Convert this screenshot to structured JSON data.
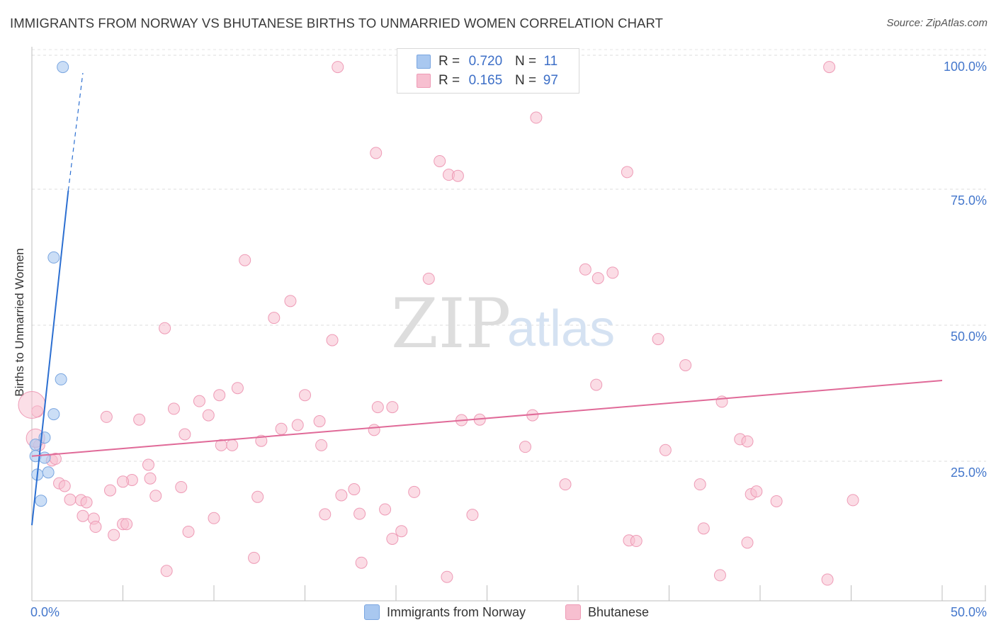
{
  "title": "IMMIGRANTS FROM NORWAY VS BHUTANESE BIRTHS TO UNMARRIED WOMEN CORRELATION CHART",
  "source": "Source: ZipAtlas.com",
  "watermark": {
    "zip": "ZIP",
    "atlas": "atlas"
  },
  "legend": {
    "series1": {
      "r_label": "R =",
      "r_value": "0.720",
      "n_label": "N =",
      "n_value": "11"
    },
    "series2": {
      "r_label": "R =",
      "r_value": "0.165",
      "n_label": "N =",
      "n_value": "97"
    }
  },
  "colors": {
    "norway_fill": "#a9c8f0",
    "norway_stroke": "#7aa6e0",
    "norway_line": "#2c6fd1",
    "bhutan_fill": "#f7bfd0",
    "bhutan_stroke": "#ee9bb6",
    "bhutan_line": "#e06a98"
  },
  "chart_data": {
    "type": "scatter",
    "title": "IMMIGRANTS FROM NORWAY VS BHUTANESE BIRTHS TO UNMARRIED WOMEN CORRELATION CHART",
    "xlabel": "",
    "ylabel": "Births to Unmarried Women",
    "xlim": [
      0,
      50
    ],
    "ylim": [
      0,
      100
    ],
    "x_tick_labels": [
      "0.0%",
      "50.0%"
    ],
    "y_tick_labels": [
      "25.0%",
      "50.0%",
      "75.0%",
      "100.0%"
    ],
    "y_tick_values": [
      25,
      50,
      75,
      100
    ],
    "grid": true,
    "legend_position": "bottom-center",
    "series": [
      {
        "name": "Immigrants from Norway",
        "r": 0.72,
        "n": 11,
        "points": [
          {
            "x": 1.7,
            "y": 98.1
          },
          {
            "x": 1.2,
            "y": 63.1
          },
          {
            "x": 1.6,
            "y": 40.7
          },
          {
            "x": 1.2,
            "y": 34.3
          },
          {
            "x": 0.7,
            "y": 30.0
          },
          {
            "x": 0.2,
            "y": 28.7
          },
          {
            "x": 0.2,
            "y": 26.6
          },
          {
            "x": 0.7,
            "y": 26.3
          },
          {
            "x": 0.9,
            "y": 23.6
          },
          {
            "x": 0.3,
            "y": 23.2
          },
          {
            "x": 0.5,
            "y": 18.4
          }
        ],
        "trend": {
          "x1": 0.0,
          "y1": 13.9,
          "x2": 2.0,
          "y2": 75.4,
          "dash_to": {
            "x": 2.8,
            "y": 97.0
          }
        }
      },
      {
        "name": "Bhutanese",
        "r": 0.165,
        "n": 97,
        "points": [
          {
            "x": 16.8,
            "y": 98.1
          },
          {
            "x": 43.8,
            "y": 98.1
          },
          {
            "x": 27.7,
            "y": 88.8
          },
          {
            "x": 18.9,
            "y": 82.3
          },
          {
            "x": 22.4,
            "y": 80.8
          },
          {
            "x": 22.9,
            "y": 78.3
          },
          {
            "x": 23.4,
            "y": 78.1
          },
          {
            "x": 32.7,
            "y": 78.8
          },
          {
            "x": 11.7,
            "y": 62.6
          },
          {
            "x": 30.4,
            "y": 60.9
          },
          {
            "x": 31.1,
            "y": 59.3
          },
          {
            "x": 31.9,
            "y": 60.3
          },
          {
            "x": 21.8,
            "y": 59.2
          },
          {
            "x": 14.2,
            "y": 55.1
          },
          {
            "x": 13.3,
            "y": 52.0
          },
          {
            "x": 7.3,
            "y": 50.1
          },
          {
            "x": 16.5,
            "y": 47.9
          },
          {
            "x": 34.4,
            "y": 48.1
          },
          {
            "x": 35.9,
            "y": 43.3
          },
          {
            "x": 31.0,
            "y": 39.7
          },
          {
            "x": 11.3,
            "y": 39.1
          },
          {
            "x": 10.3,
            "y": 37.8
          },
          {
            "x": 15.0,
            "y": 37.8
          },
          {
            "x": 9.2,
            "y": 36.7
          },
          {
            "x": 7.8,
            "y": 35.3
          },
          {
            "x": 19.0,
            "y": 35.6
          },
          {
            "x": 19.8,
            "y": 35.6
          },
          {
            "x": 9.7,
            "y": 34.1
          },
          {
            "x": 4.1,
            "y": 33.8
          },
          {
            "x": 5.9,
            "y": 33.3
          },
          {
            "x": 37.9,
            "y": 36.6
          },
          {
            "x": 27.5,
            "y": 34.1
          },
          {
            "x": 23.6,
            "y": 33.2
          },
          {
            "x": 24.6,
            "y": 33.3
          },
          {
            "x": 15.8,
            "y": 33.0
          },
          {
            "x": 14.6,
            "y": 32.3
          },
          {
            "x": 13.7,
            "y": 31.6
          },
          {
            "x": 18.8,
            "y": 31.4
          },
          {
            "x": 8.4,
            "y": 30.6
          },
          {
            "x": 12.6,
            "y": 29.4
          },
          {
            "x": 10.4,
            "y": 28.6
          },
          {
            "x": 11.0,
            "y": 28.6
          },
          {
            "x": 15.9,
            "y": 28.6
          },
          {
            "x": 27.1,
            "y": 28.3
          },
          {
            "x": 34.8,
            "y": 27.7
          },
          {
            "x": 38.9,
            "y": 29.7
          },
          {
            "x": 39.3,
            "y": 29.3
          },
          {
            "x": 0.3,
            "y": 34.8
          },
          {
            "x": 0.4,
            "y": 28.6
          },
          {
            "x": 1.1,
            "y": 25.8
          },
          {
            "x": 1.3,
            "y": 26.1
          },
          {
            "x": 6.4,
            "y": 25.0
          },
          {
            "x": 6.5,
            "y": 22.5
          },
          {
            "x": 5.5,
            "y": 22.2
          },
          {
            "x": 5.0,
            "y": 21.9
          },
          {
            "x": 1.5,
            "y": 21.6
          },
          {
            "x": 1.8,
            "y": 21.1
          },
          {
            "x": 8.2,
            "y": 20.9
          },
          {
            "x": 2.1,
            "y": 18.6
          },
          {
            "x": 2.7,
            "y": 18.5
          },
          {
            "x": 4.3,
            "y": 20.3
          },
          {
            "x": 6.8,
            "y": 19.3
          },
          {
            "x": 12.4,
            "y": 19.1
          },
          {
            "x": 17.0,
            "y": 19.4
          },
          {
            "x": 17.7,
            "y": 20.5
          },
          {
            "x": 21.0,
            "y": 20.0
          },
          {
            "x": 29.3,
            "y": 21.4
          },
          {
            "x": 36.7,
            "y": 21.4
          },
          {
            "x": 39.5,
            "y": 19.6
          },
          {
            "x": 39.8,
            "y": 20.1
          },
          {
            "x": 40.9,
            "y": 18.3
          },
          {
            "x": 45.1,
            "y": 18.5
          },
          {
            "x": 3.0,
            "y": 18.1
          },
          {
            "x": 2.8,
            "y": 15.6
          },
          {
            "x": 3.4,
            "y": 15.1
          },
          {
            "x": 16.1,
            "y": 15.9
          },
          {
            "x": 19.4,
            "y": 16.8
          },
          {
            "x": 24.2,
            "y": 15.8
          },
          {
            "x": 18.0,
            "y": 16.0
          },
          {
            "x": 10.0,
            "y": 15.2
          },
          {
            "x": 3.5,
            "y": 13.6
          },
          {
            "x": 4.5,
            "y": 12.1
          },
          {
            "x": 5.0,
            "y": 14.1
          },
          {
            "x": 5.2,
            "y": 14.1
          },
          {
            "x": 8.6,
            "y": 12.7
          },
          {
            "x": 20.3,
            "y": 12.8
          },
          {
            "x": 19.8,
            "y": 11.4
          },
          {
            "x": 32.8,
            "y": 11.1
          },
          {
            "x": 33.2,
            "y": 11.0
          },
          {
            "x": 36.9,
            "y": 13.3
          },
          {
            "x": 39.3,
            "y": 10.7
          },
          {
            "x": 12.2,
            "y": 7.9
          },
          {
            "x": 18.1,
            "y": 7.0
          },
          {
            "x": 7.4,
            "y": 5.5
          },
          {
            "x": 22.8,
            "y": 4.4
          },
          {
            "x": 37.8,
            "y": 4.7
          },
          {
            "x": 43.7,
            "y": 3.9
          }
        ],
        "trend": {
          "x1": 0.0,
          "y1": 26.6,
          "x2": 50.0,
          "y2": 40.5
        }
      }
    ]
  }
}
